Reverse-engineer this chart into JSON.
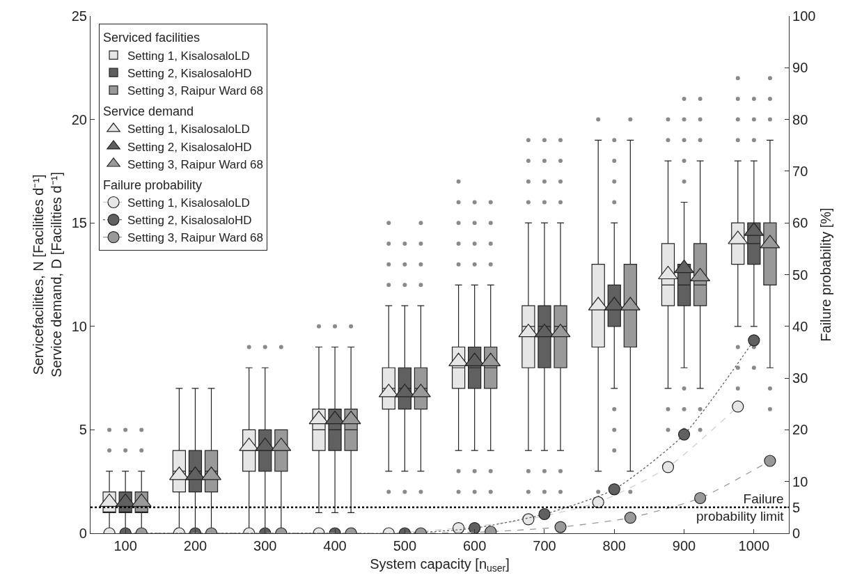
{
  "chart_data": {
    "type": "box",
    "xlabel": "System capacity [n$_{user}$]",
    "ylabel": "Servicefacilities, N [Facilities d⁻¹]\nService demand, D [Facilities d⁻¹]",
    "y2label": "Failure probability [%]",
    "annotations": [
      "Serviced facilities",
      "Service demand",
      "Failure probability"
    ],
    "xlim": [
      50,
      1050
    ],
    "xticks": [
      100,
      200,
      300,
      400,
      500,
      600,
      700,
      800,
      900,
      1000
    ],
    "ylim": [
      0,
      25
    ],
    "yticks": [
      0,
      5,
      10,
      15,
      20,
      25
    ],
    "y2lim": [
      0,
      100
    ],
    "y2ticks": [
      0,
      5,
      10,
      20,
      30,
      40,
      50,
      60,
      70,
      80,
      90,
      100
    ],
    "grid": false,
    "legend": "top left",
    "ref_lines": [
      {
        "axis": "y2",
        "value": 5,
        "label": "Failure\nprobability limit",
        "color": "#000000",
        "line_style": "dotted"
      }
    ],
    "series": [
      {
        "name": "Setting 1, KisalosaloLD",
        "color": "#e6e6e6",
        "x": [
          77,
          177,
          277,
          377,
          477,
          577,
          677,
          777,
          877,
          977
        ],
        "boxes": [
          {
            "low": 0,
            "q1": 1,
            "median": 1,
            "q3": 2,
            "high": 3,
            "outliers": [
              4,
              5
            ]
          },
          {
            "low": 0,
            "q1": 2,
            "median": 3,
            "q3": 4,
            "high": 7
          },
          {
            "low": 0,
            "q1": 3,
            "median": 4,
            "q3": 5,
            "high": 8,
            "outliers": [
              9
            ]
          },
          {
            "low": 1,
            "q1": 4,
            "median": 5,
            "q3": 6,
            "high": 9,
            "outliers": [
              10
            ]
          },
          {
            "low": 3,
            "q1": 6,
            "median": 7,
            "q3": 8,
            "high": 11,
            "outliers": [
              2,
              12,
              13,
              14,
              15
            ]
          },
          {
            "low": 4,
            "q1": 7,
            "median": 8,
            "q3": 9,
            "high": 12,
            "outliers": [
              2,
              3,
              13,
              14,
              15,
              16,
              17
            ]
          },
          {
            "low": 4,
            "q1": 8,
            "median": 10,
            "q3": 11,
            "high": 15,
            "outliers": [
              2,
              3,
              16,
              17,
              18,
              19
            ]
          },
          {
            "low": 3,
            "q1": 9,
            "median": 11,
            "q3": 13,
            "high": 19,
            "outliers": [
              2,
              20
            ]
          },
          {
            "low": 7,
            "q1": 11,
            "median": 12,
            "q3": 14,
            "high": 18,
            "outliers": [
              5,
              6,
              19,
              20
            ]
          },
          {
            "low": 10,
            "q1": 13,
            "median": 14,
            "q3": 15,
            "high": 18,
            "outliers": [
              7,
              8,
              9,
              19,
              20,
              21,
              22
            ]
          }
        ]
      },
      {
        "name": "Setting 2, KisalosaloHD",
        "color": "#606060",
        "x": [
          100,
          200,
          300,
          400,
          500,
          600,
          700,
          800,
          900,
          1000
        ],
        "boxes": [
          {
            "low": 0,
            "q1": 1,
            "median": 1,
            "q3": 2,
            "high": 3,
            "outliers": [
              4,
              5
            ]
          },
          {
            "low": 0,
            "q1": 2,
            "median": 3,
            "q3": 4,
            "high": 7
          },
          {
            "low": 0,
            "q1": 3,
            "median": 4,
            "q3": 5,
            "high": 8,
            "outliers": [
              9
            ]
          },
          {
            "low": 1,
            "q1": 4,
            "median": 5,
            "q3": 6,
            "high": 9,
            "outliers": [
              10
            ]
          },
          {
            "low": 3,
            "q1": 6,
            "median": 7,
            "q3": 8,
            "high": 11,
            "outliers": [
              2,
              12,
              13,
              14
            ]
          },
          {
            "low": 4,
            "q1": 7,
            "median": 8,
            "q3": 9,
            "high": 12,
            "outliers": [
              2,
              3,
              13,
              14,
              15,
              16
            ]
          },
          {
            "low": 4,
            "q1": 8,
            "median": 10,
            "q3": 11,
            "high": 15,
            "outliers": [
              2,
              3,
              16,
              17,
              18,
              19
            ]
          },
          {
            "low": 7,
            "q1": 10,
            "median": 11,
            "q3": 12,
            "high": 15,
            "outliers": [
              4,
              5,
              6,
              16,
              17,
              18,
              19
            ]
          },
          {
            "low": 8,
            "q1": 11,
            "median": 12,
            "q3": 13,
            "high": 16,
            "outliers": [
              5,
              6,
              7,
              17,
              18,
              19,
              20,
              21
            ]
          },
          {
            "low": 10,
            "q1": 13,
            "median": 14,
            "q3": 15,
            "high": 18,
            "outliers": [
              8,
              9,
              19,
              20,
              21
            ]
          }
        ]
      },
      {
        "name": "Setting 3, Raipur Ward 68",
        "color": "#999999",
        "x": [
          123,
          223,
          323,
          423,
          523,
          623,
          723,
          823,
          923,
          1023
        ],
        "boxes": [
          {
            "low": 0,
            "q1": 1,
            "median": 1,
            "q3": 2,
            "high": 3,
            "outliers": [
              4,
              5
            ]
          },
          {
            "low": 0,
            "q1": 2,
            "median": 3,
            "q3": 4,
            "high": 7
          },
          {
            "low": 0,
            "q1": 3,
            "median": 4,
            "q3": 5,
            "high": 5,
            "outliers": [
              9
            ]
          },
          {
            "low": 1,
            "q1": 4,
            "median": 5,
            "q3": 6,
            "high": 9,
            "outliers": [
              10
            ]
          },
          {
            "low": 3,
            "q1": 6,
            "median": 7,
            "q3": 8,
            "high": 11,
            "outliers": [
              2,
              12,
              13,
              14,
              15
            ]
          },
          {
            "low": 4,
            "q1": 7,
            "median": 8,
            "q3": 9,
            "high": 12,
            "outliers": [
              2,
              3,
              13,
              14,
              15,
              16
            ]
          },
          {
            "low": 4,
            "q1": 8,
            "median": 10,
            "q3": 11,
            "high": 15,
            "outliers": [
              2,
              3,
              16,
              17,
              18,
              19
            ]
          },
          {
            "low": 3,
            "q1": 9,
            "median": 11,
            "q3": 13,
            "high": 19,
            "outliers": [
              2,
              20
            ]
          },
          {
            "low": 7,
            "q1": 11,
            "median": 12,
            "q3": 14,
            "high": 18,
            "outliers": [
              5,
              6,
              19,
              20,
              21
            ]
          },
          {
            "low": 8,
            "q1": 12,
            "median": 14,
            "q3": 15,
            "high": 19,
            "outliers": [
              6,
              7,
              20,
              21,
              22
            ]
          }
        ]
      },
      {
        "type": "scatter",
        "marker": "triangle",
        "name": "Setting 1, KisalosaloLD",
        "color": "#e6e6e6",
        "x": [
          77,
          177,
          277,
          377,
          477,
          577,
          677,
          777,
          877,
          977
        ],
        "values": [
          1.5,
          2.8,
          4.2,
          5.5,
          6.8,
          8.3,
          9.7,
          11,
          12.5,
          14.2
        ]
      },
      {
        "type": "scatter",
        "marker": "triangle",
        "name": "Setting 2, KisalosaloHD",
        "color": "#606060",
        "x": [
          100,
          200,
          300,
          400,
          500,
          600,
          700,
          800,
          900,
          1000
        ],
        "values": [
          1.5,
          2.8,
          4.2,
          5.5,
          6.8,
          8.3,
          9.7,
          11,
          12.8,
          14.6
        ]
      },
      {
        "type": "scatter",
        "marker": "triangle",
        "name": "Setting 3, Raipur Ward 68",
        "color": "#999999",
        "x": [
          123,
          223,
          323,
          423,
          523,
          623,
          723,
          823,
          923,
          1023
        ],
        "values": [
          1.5,
          2.8,
          4.2,
          5.5,
          6.8,
          8.3,
          9.7,
          11,
          12.4,
          14
        ]
      },
      {
        "type": "line",
        "axis": "y2",
        "marker": "circle",
        "line_style": "dashed",
        "name": "Setting 1, KisalosaloLD",
        "color": "#e6e6e6",
        "x": [
          77,
          177,
          277,
          377,
          477,
          577,
          677,
          777,
          877,
          977
        ],
        "values": [
          0,
          0,
          0,
          0,
          0,
          1,
          2.7,
          6,
          12.8,
          24.5
        ]
      },
      {
        "type": "line",
        "axis": "y2",
        "marker": "circle",
        "line_style": "dotted",
        "name": "Setting 2, KisalosaloHD",
        "color": "#606060",
        "x": [
          100,
          200,
          300,
          400,
          500,
          600,
          700,
          800,
          900,
          1000
        ],
        "values": [
          0,
          0,
          0,
          0,
          0,
          1,
          3.7,
          8.5,
          19.1,
          37.3
        ]
      },
      {
        "type": "line",
        "axis": "y2",
        "marker": "circle",
        "line_style": "dashed",
        "name": "Setting 3, Raipur Ward 68",
        "color": "#999999",
        "x": [
          123,
          223,
          323,
          423,
          523,
          623,
          723,
          823,
          923,
          1023
        ],
        "values": [
          0,
          0,
          0,
          0,
          0,
          0.3,
          1.2,
          3,
          6.8,
          14
        ]
      }
    ]
  }
}
